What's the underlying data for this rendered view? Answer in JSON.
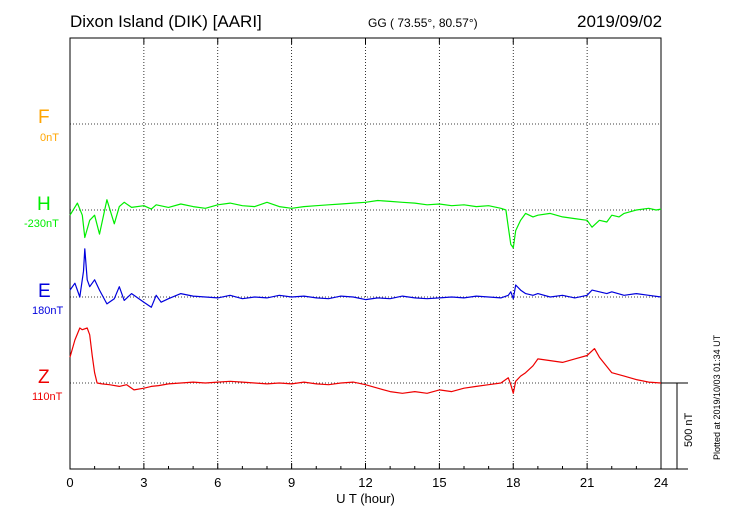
{
  "header": {
    "station": "Dixon Island (DIK)  [AARI]",
    "coords": "GG ( 73.55°,  80.57°)",
    "date": "2019/09/02"
  },
  "components": [
    {
      "name": "F",
      "offset": "0nT",
      "color": "#ffa500"
    },
    {
      "name": "H",
      "offset": "-230nT",
      "color": "#00ee00"
    },
    {
      "name": "E",
      "offset": "180nT",
      "color": "#0000dd"
    },
    {
      "name": "Z",
      "offset": "110nT",
      "color": "#ee0000"
    }
  ],
  "scale_bar": {
    "label": "500 nT"
  },
  "footer": {
    "plotted": "Plotted at 2019/10/03 01:34 UT"
  },
  "chart_data": {
    "type": "line",
    "xlabel": "U T (hour)",
    "xlim": [
      0,
      24
    ],
    "xticks": [
      0,
      3,
      6,
      9,
      12,
      15,
      18,
      21,
      24
    ],
    "scale_nT": 500,
    "grid": true,
    "series": [
      {
        "name": "H",
        "color": "#00ee00",
        "x": [
          0,
          0.3,
          0.5,
          0.6,
          0.8,
          1.0,
          1.2,
          1.5,
          1.8,
          2.0,
          2.2,
          2.5,
          3.0,
          3.3,
          3.5,
          4.0,
          4.5,
          5.0,
          5.5,
          6.0,
          6.5,
          7.0,
          7.5,
          8.0,
          8.5,
          9.0,
          9.5,
          10.0,
          10.5,
          11.0,
          11.5,
          12.0,
          12.5,
          13.0,
          13.5,
          14.0,
          14.5,
          15.0,
          15.5,
          16.0,
          16.5,
          17.0,
          17.5,
          17.7,
          17.8,
          17.9,
          18.0,
          18.1,
          18.3,
          18.5,
          18.8,
          19.0,
          19.5,
          20.0,
          20.5,
          21.0,
          21.2,
          21.5,
          21.8,
          22.0,
          22.3,
          22.5,
          23.0,
          23.5,
          23.8,
          24.0
        ],
        "y": [
          -30,
          40,
          -30,
          -160,
          -60,
          -30,
          -140,
          60,
          -80,
          20,
          45,
          15,
          25,
          5,
          30,
          15,
          35,
          20,
          10,
          30,
          40,
          25,
          20,
          45,
          20,
          10,
          20,
          25,
          30,
          35,
          40,
          45,
          55,
          50,
          45,
          40,
          30,
          35,
          25,
          30,
          20,
          25,
          10,
          0,
          -100,
          -200,
          -220,
          -120,
          -60,
          -20,
          -40,
          -30,
          -20,
          -40,
          -50,
          -60,
          -100,
          -60,
          -70,
          -30,
          -40,
          -20,
          0,
          10,
          0,
          5
        ]
      },
      {
        "name": "E",
        "color": "#0000dd",
        "x": [
          0,
          0.2,
          0.4,
          0.55,
          0.6,
          0.7,
          0.8,
          1.0,
          1.2,
          1.5,
          1.8,
          2.0,
          2.2,
          2.5,
          3.0,
          3.3,
          3.5,
          3.7,
          4.0,
          4.5,
          5.0,
          5.5,
          6.0,
          6.5,
          7.0,
          7.5,
          8.0,
          8.5,
          9.0,
          9.5,
          10.0,
          10.5,
          11.0,
          11.5,
          12.0,
          12.5,
          13.0,
          13.5,
          14.0,
          14.5,
          15.0,
          15.5,
          16.0,
          16.5,
          17.0,
          17.5,
          17.8,
          17.9,
          18.0,
          18.1,
          18.3,
          18.5,
          18.8,
          19.0,
          19.5,
          20.0,
          20.5,
          21.0,
          21.2,
          21.5,
          21.8,
          22.0,
          22.5,
          23.0,
          23.5,
          24.0
        ],
        "y": [
          40,
          80,
          0,
          150,
          280,
          100,
          60,
          100,
          40,
          -40,
          -10,
          60,
          -20,
          20,
          -30,
          -60,
          10,
          -30,
          -10,
          20,
          5,
          0,
          -5,
          10,
          -10,
          0,
          -5,
          10,
          0,
          5,
          -5,
          -10,
          5,
          0,
          -15,
          -5,
          -10,
          5,
          -5,
          -10,
          -5,
          0,
          -5,
          5,
          0,
          -5,
          10,
          30,
          -10,
          70,
          40,
          20,
          10,
          20,
          0,
          10,
          -5,
          10,
          40,
          30,
          20,
          30,
          10,
          20,
          10,
          0
        ]
      },
      {
        "name": "Z",
        "color": "#ee0000",
        "x": [
          0,
          0.2,
          0.4,
          0.5,
          0.7,
          0.8,
          0.9,
          1.0,
          1.1,
          1.3,
          1.6,
          2.0,
          2.3,
          2.6,
          3.0,
          3.3,
          3.6,
          4.0,
          4.5,
          5.0,
          5.5,
          6.0,
          6.5,
          7.0,
          7.5,
          8.0,
          8.5,
          9.0,
          9.5,
          10.0,
          10.5,
          11.0,
          11.5,
          12.0,
          12.5,
          13.0,
          13.5,
          14.0,
          14.5,
          15.0,
          15.5,
          16.0,
          16.5,
          17.0,
          17.5,
          17.8,
          17.9,
          18.0,
          18.1,
          18.3,
          18.5,
          18.8,
          19.0,
          19.5,
          20.0,
          20.5,
          21.0,
          21.3,
          21.5,
          22.0,
          22.5,
          23.0,
          23.5,
          24.0
        ],
        "y": [
          150,
          250,
          320,
          310,
          320,
          280,
          160,
          60,
          0,
          -5,
          -10,
          -20,
          -10,
          -40,
          -30,
          -20,
          -15,
          -5,
          0,
          5,
          0,
          5,
          10,
          5,
          0,
          -5,
          0,
          -5,
          5,
          -5,
          -10,
          0,
          5,
          -10,
          -30,
          -50,
          -60,
          -50,
          -60,
          -40,
          -50,
          -30,
          -20,
          -10,
          0,
          30,
          -10,
          -60,
          10,
          40,
          60,
          100,
          140,
          130,
          120,
          140,
          160,
          200,
          150,
          60,
          40,
          20,
          5,
          0
        ]
      }
    ]
  }
}
